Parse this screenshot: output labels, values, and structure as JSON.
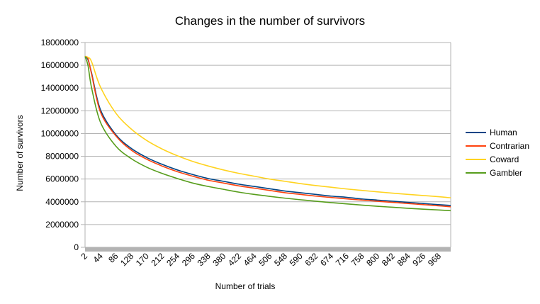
{
  "chart_data": {
    "type": "line",
    "title": "Changes in the number of survivors",
    "xlabel": "Number of trials",
    "ylabel": "Number of survivors",
    "ylim": [
      0,
      18000000
    ],
    "yticks": [
      0,
      2000000,
      4000000,
      6000000,
      8000000,
      10000000,
      12000000,
      14000000,
      16000000,
      18000000
    ],
    "ytick_labels": [
      "0",
      "2000000",
      "4000000",
      "6000000",
      "8000000",
      "10000000",
      "12000000",
      "14000000",
      "16000000",
      "18000000"
    ],
    "xlim": [
      2,
      1001
    ],
    "xtick_labels": [
      "2",
      "44",
      "86",
      "128",
      "170",
      "212",
      "254",
      "296",
      "338",
      "380",
      "422",
      "464",
      "506",
      "548",
      "590",
      "632",
      "674",
      "716",
      "758",
      "800",
      "842",
      "884",
      "926",
      "968"
    ],
    "grid": true,
    "legend_position": "right",
    "series": [
      {
        "name": "Human",
        "color": "#004586",
        "x": [
          2,
          10,
          20,
          44,
          86,
          128,
          170,
          212,
          254,
          296,
          338,
          380,
          422,
          464,
          506,
          548,
          590,
          632,
          674,
          716,
          758,
          800,
          842,
          884,
          926,
          968,
          1001
        ],
        "values": [
          16777216,
          16500000,
          15300000,
          12100000,
          9900000,
          8700000,
          7900000,
          7300000,
          6800000,
          6400000,
          6050000,
          5800000,
          5550000,
          5350000,
          5150000,
          4950000,
          4800000,
          4650000,
          4500000,
          4400000,
          4250000,
          4150000,
          4050000,
          3950000,
          3850000,
          3750000,
          3680000
        ]
      },
      {
        "name": "Contrarian",
        "color": "#ff420e",
        "x": [
          2,
          10,
          20,
          44,
          86,
          128,
          170,
          212,
          254,
          296,
          338,
          380,
          422,
          464,
          506,
          548,
          590,
          632,
          674,
          716,
          758,
          800,
          842,
          884,
          926,
          968,
          1001
        ],
        "values": [
          16777216,
          16600000,
          15200000,
          11900000,
          9800000,
          8550000,
          7750000,
          7150000,
          6650000,
          6250000,
          5900000,
          5650000,
          5400000,
          5200000,
          5000000,
          4800000,
          4650000,
          4500000,
          4380000,
          4260000,
          4150000,
          4050000,
          3950000,
          3850000,
          3750000,
          3650000,
          3560000
        ]
      },
      {
        "name": "Coward",
        "color": "#ffd320",
        "x": [
          2,
          10,
          20,
          44,
          86,
          128,
          170,
          212,
          254,
          296,
          338,
          380,
          422,
          464,
          506,
          548,
          590,
          632,
          674,
          716,
          758,
          800,
          842,
          884,
          926,
          968,
          1001
        ],
        "values": [
          16777216,
          16700000,
          16300000,
          14100000,
          11800000,
          10400000,
          9400000,
          8650000,
          8050000,
          7550000,
          7150000,
          6800000,
          6500000,
          6250000,
          6000000,
          5800000,
          5600000,
          5430000,
          5280000,
          5130000,
          5000000,
          4880000,
          4760000,
          4650000,
          4550000,
          4450000,
          4350000
        ]
      },
      {
        "name": "Gambler",
        "color": "#579d1c",
        "x": [
          2,
          10,
          20,
          44,
          86,
          128,
          170,
          212,
          254,
          296,
          338,
          380,
          422,
          464,
          506,
          548,
          590,
          632,
          674,
          716,
          758,
          800,
          842,
          884,
          926,
          968,
          1001
        ],
        "values": [
          16777216,
          16000000,
          14000000,
          11000000,
          8900000,
          7800000,
          7050000,
          6500000,
          6050000,
          5650000,
          5350000,
          5100000,
          4850000,
          4650000,
          4480000,
          4320000,
          4180000,
          4050000,
          3930000,
          3820000,
          3710000,
          3610000,
          3520000,
          3430000,
          3350000,
          3280000,
          3220000
        ]
      }
    ]
  }
}
